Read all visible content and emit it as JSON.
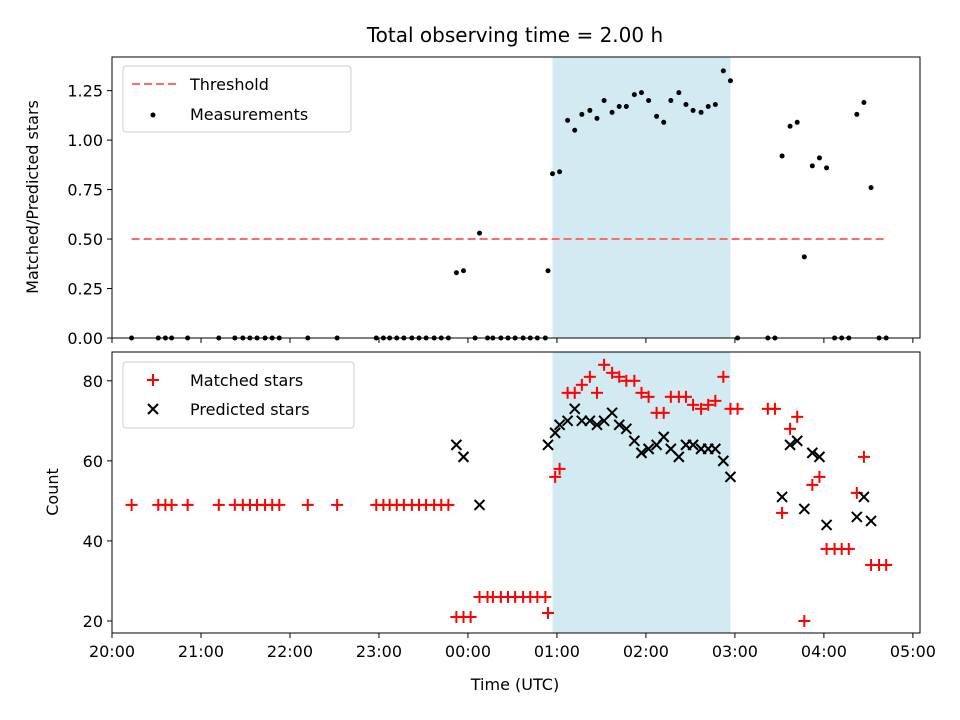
{
  "chart_data": [
    {
      "type": "scatter",
      "title": "Total observing time = 2.00 h",
      "ylabel": "Matched/Predicted stars",
      "xlabel": "",
      "xlim": [
        20.0,
        29.08
      ],
      "ylim": [
        0.0,
        1.42
      ],
      "y_ticks": [
        0.0,
        0.25,
        0.5,
        0.75,
        1.0,
        1.25
      ],
      "y_tick_labels": [
        "0.00",
        "0.25",
        "0.50",
        "0.75",
        "1.00",
        "1.25"
      ],
      "legend_position": "upper-left",
      "shaded_region": {
        "x_start": 24.95,
        "x_end": 26.95,
        "color": "#add8e6"
      },
      "series": [
        {
          "name": "Threshold",
          "kind": "line",
          "style": "dashed",
          "color": "#ff6b6b",
          "x": [
            20.22,
            28.7
          ],
          "y": [
            0.5,
            0.5
          ]
        },
        {
          "name": "Measurements",
          "kind": "points",
          "color": "#000000",
          "x": [
            20.22,
            20.52,
            20.6,
            20.67,
            20.85,
            21.2,
            21.38,
            21.47,
            21.55,
            21.63,
            21.72,
            21.8,
            21.88,
            22.2,
            22.53,
            22.97,
            23.05,
            23.12,
            23.2,
            23.28,
            23.37,
            23.45,
            23.53,
            23.62,
            23.7,
            23.78,
            23.87,
            23.95,
            24.08,
            24.13,
            24.22,
            24.28,
            24.37,
            24.45,
            24.53,
            24.62,
            24.7,
            24.78,
            24.87,
            24.9,
            24.95,
            25.03,
            25.12,
            25.2,
            25.28,
            25.37,
            25.45,
            25.53,
            25.62,
            25.7,
            25.78,
            25.87,
            25.95,
            26.03,
            26.12,
            26.2,
            26.28,
            26.37,
            26.45,
            26.53,
            26.62,
            26.7,
            26.78,
            26.87,
            26.95,
            27.03,
            27.37,
            27.45,
            27.53,
            27.62,
            27.7,
            27.78,
            27.87,
            27.95,
            28.03,
            28.12,
            28.2,
            28.28,
            28.37,
            28.45,
            28.53,
            28.62,
            28.7
          ],
          "y": [
            0.0,
            0.0,
            0.0,
            0.0,
            0.0,
            0.0,
            0.0,
            0.0,
            0.0,
            0.0,
            0.0,
            0.0,
            0.0,
            0.0,
            0.0,
            0.0,
            0.0,
            0.0,
            0.0,
            0.0,
            0.0,
            0.0,
            0.0,
            0.0,
            0.0,
            0.0,
            0.33,
            0.34,
            0.0,
            0.53,
            0.0,
            0.0,
            0.0,
            0.0,
            0.0,
            0.0,
            0.0,
            0.0,
            0.0,
            0.34,
            0.83,
            0.84,
            1.1,
            1.05,
            1.13,
            1.15,
            1.11,
            1.2,
            1.14,
            1.17,
            1.17,
            1.23,
            1.24,
            1.2,
            1.12,
            1.09,
            1.2,
            1.24,
            1.18,
            1.15,
            1.14,
            1.17,
            1.18,
            1.35,
            1.3,
            0.0,
            0.0,
            0.0,
            0.92,
            1.07,
            1.09,
            0.41,
            0.87,
            0.91,
            0.86,
            0.0,
            0.0,
            0.0,
            1.13,
            1.19,
            0.76,
            0.0,
            0.0
          ]
        }
      ]
    },
    {
      "type": "scatter",
      "title": "",
      "ylabel": "Count",
      "xlabel": "Time (UTC)",
      "xlim": [
        20.0,
        29.08
      ],
      "ylim": [
        17.0,
        87.2
      ],
      "x_ticks": [
        20,
        21,
        22,
        23,
        24,
        25,
        26,
        27,
        28,
        29
      ],
      "x_tick_labels": [
        "20:00",
        "21:00",
        "22:00",
        "23:00",
        "00:00",
        "01:00",
        "02:00",
        "03:00",
        "04:00",
        "05:00"
      ],
      "y_ticks": [
        20,
        40,
        60,
        80
      ],
      "y_tick_labels": [
        "20",
        "40",
        "60",
        "80"
      ],
      "legend_position": "upper-left",
      "shaded_region": {
        "x_start": 24.95,
        "x_end": 26.95,
        "color": "#add8e6"
      },
      "series": [
        {
          "name": "Matched stars",
          "marker": "plus",
          "color": "#ff0000",
          "x": [
            20.22,
            20.52,
            20.6,
            20.67,
            20.85,
            21.2,
            21.38,
            21.47,
            21.55,
            21.63,
            21.72,
            21.8,
            21.88,
            22.2,
            22.53,
            22.97,
            23.05,
            23.12,
            23.2,
            23.28,
            23.37,
            23.45,
            23.53,
            23.62,
            23.7,
            23.78,
            23.87,
            23.95,
            24.03,
            24.13,
            24.22,
            24.28,
            24.37,
            24.45,
            24.53,
            24.62,
            24.7,
            24.78,
            24.87,
            24.9,
            24.98,
            25.03,
            25.12,
            25.2,
            25.28,
            25.37,
            25.45,
            25.53,
            25.62,
            25.7,
            25.78,
            25.87,
            25.95,
            26.03,
            26.12,
            26.2,
            26.28,
            26.37,
            26.45,
            26.53,
            26.62,
            26.7,
            26.78,
            26.87,
            26.95,
            27.03,
            27.37,
            27.45,
            27.53,
            27.62,
            27.7,
            27.78,
            27.87,
            27.95,
            28.03,
            28.12,
            28.2,
            28.28,
            28.37,
            28.45,
            28.53,
            28.62,
            28.7
          ],
          "y": [
            49,
            49,
            49,
            49,
            49,
            49,
            49,
            49,
            49,
            49,
            49,
            49,
            49,
            49,
            49,
            49,
            49,
            49,
            49,
            49,
            49,
            49,
            49,
            49,
            49,
            49,
            21,
            21,
            21,
            26,
            26,
            26,
            26,
            26,
            26,
            26,
            26,
            26,
            26,
            22,
            56,
            58,
            77,
            77,
            79,
            81,
            77,
            84,
            82,
            81,
            80,
            80,
            77,
            76,
            72,
            72,
            76,
            76,
            76,
            74,
            73,
            74,
            75,
            81,
            73,
            73,
            73,
            73,
            47,
            68,
            71,
            20,
            54,
            56,
            38,
            38,
            38,
            38,
            52,
            61,
            34,
            34,
            34
          ]
        },
        {
          "name": "Predicted stars",
          "marker": "x",
          "color": "#000000",
          "x": [
            23.87,
            23.95,
            24.13,
            24.9,
            24.98,
            25.03,
            25.12,
            25.2,
            25.28,
            25.37,
            25.45,
            25.53,
            25.62,
            25.7,
            25.78,
            25.87,
            25.95,
            26.03,
            26.12,
            26.2,
            26.28,
            26.37,
            26.45,
            26.53,
            26.62,
            26.7,
            26.78,
            26.87,
            26.95,
            27.53,
            27.62,
            27.7,
            27.78,
            27.87,
            27.95,
            28.03,
            28.37,
            28.45,
            28.53
          ],
          "y": [
            64,
            61,
            49,
            64,
            67,
            69,
            70,
            73,
            70,
            70,
            69,
            70,
            72,
            69,
            68,
            65,
            62,
            63,
            64,
            66,
            63,
            61,
            64,
            64,
            63,
            63,
            63,
            60,
            56,
            51,
            64,
            65,
            48,
            62,
            61,
            44,
            46,
            51,
            45
          ]
        }
      ]
    }
  ]
}
